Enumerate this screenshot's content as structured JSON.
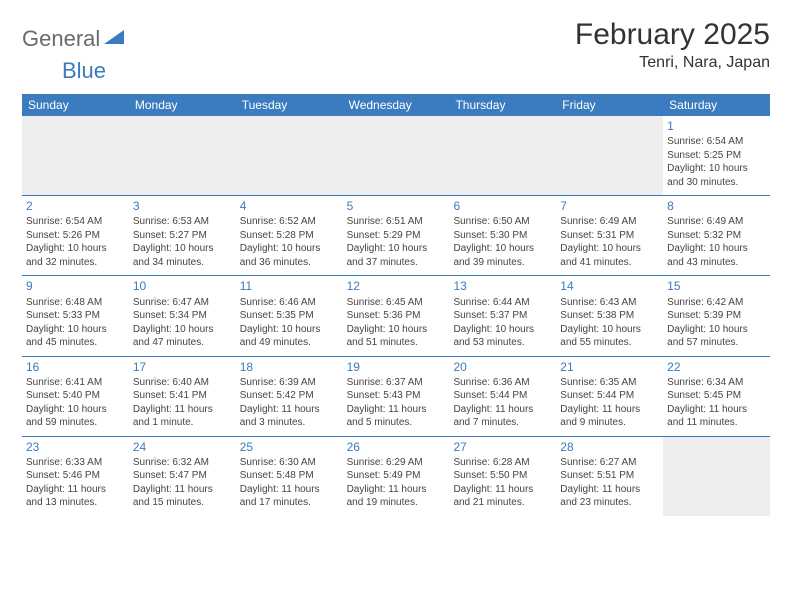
{
  "logo": {
    "word1": "General",
    "word2": "Blue"
  },
  "colors": {
    "accent": "#3b7bbf",
    "text": "#333333",
    "muted_bg": "#eeeeee",
    "header_text": "#ffffff"
  },
  "title": "February 2025",
  "location": "Tenri, Nara, Japan",
  "day_names": [
    "Sunday",
    "Monday",
    "Tuesday",
    "Wednesday",
    "Thursday",
    "Friday",
    "Saturday"
  ],
  "weeks": [
    [
      null,
      null,
      null,
      null,
      null,
      null,
      {
        "n": "1",
        "sunrise": "Sunrise: 6:54 AM",
        "sunset": "Sunset: 5:25 PM",
        "d1": "Daylight: 10 hours",
        "d2": "and 30 minutes."
      }
    ],
    [
      {
        "n": "2",
        "sunrise": "Sunrise: 6:54 AM",
        "sunset": "Sunset: 5:26 PM",
        "d1": "Daylight: 10 hours",
        "d2": "and 32 minutes."
      },
      {
        "n": "3",
        "sunrise": "Sunrise: 6:53 AM",
        "sunset": "Sunset: 5:27 PM",
        "d1": "Daylight: 10 hours",
        "d2": "and 34 minutes."
      },
      {
        "n": "4",
        "sunrise": "Sunrise: 6:52 AM",
        "sunset": "Sunset: 5:28 PM",
        "d1": "Daylight: 10 hours",
        "d2": "and 36 minutes."
      },
      {
        "n": "5",
        "sunrise": "Sunrise: 6:51 AM",
        "sunset": "Sunset: 5:29 PM",
        "d1": "Daylight: 10 hours",
        "d2": "and 37 minutes."
      },
      {
        "n": "6",
        "sunrise": "Sunrise: 6:50 AM",
        "sunset": "Sunset: 5:30 PM",
        "d1": "Daylight: 10 hours",
        "d2": "and 39 minutes."
      },
      {
        "n": "7",
        "sunrise": "Sunrise: 6:49 AM",
        "sunset": "Sunset: 5:31 PM",
        "d1": "Daylight: 10 hours",
        "d2": "and 41 minutes."
      },
      {
        "n": "8",
        "sunrise": "Sunrise: 6:49 AM",
        "sunset": "Sunset: 5:32 PM",
        "d1": "Daylight: 10 hours",
        "d2": "and 43 minutes."
      }
    ],
    [
      {
        "n": "9",
        "sunrise": "Sunrise: 6:48 AM",
        "sunset": "Sunset: 5:33 PM",
        "d1": "Daylight: 10 hours",
        "d2": "and 45 minutes."
      },
      {
        "n": "10",
        "sunrise": "Sunrise: 6:47 AM",
        "sunset": "Sunset: 5:34 PM",
        "d1": "Daylight: 10 hours",
        "d2": "and 47 minutes."
      },
      {
        "n": "11",
        "sunrise": "Sunrise: 6:46 AM",
        "sunset": "Sunset: 5:35 PM",
        "d1": "Daylight: 10 hours",
        "d2": "and 49 minutes."
      },
      {
        "n": "12",
        "sunrise": "Sunrise: 6:45 AM",
        "sunset": "Sunset: 5:36 PM",
        "d1": "Daylight: 10 hours",
        "d2": "and 51 minutes."
      },
      {
        "n": "13",
        "sunrise": "Sunrise: 6:44 AM",
        "sunset": "Sunset: 5:37 PM",
        "d1": "Daylight: 10 hours",
        "d2": "and 53 minutes."
      },
      {
        "n": "14",
        "sunrise": "Sunrise: 6:43 AM",
        "sunset": "Sunset: 5:38 PM",
        "d1": "Daylight: 10 hours",
        "d2": "and 55 minutes."
      },
      {
        "n": "15",
        "sunrise": "Sunrise: 6:42 AM",
        "sunset": "Sunset: 5:39 PM",
        "d1": "Daylight: 10 hours",
        "d2": "and 57 minutes."
      }
    ],
    [
      {
        "n": "16",
        "sunrise": "Sunrise: 6:41 AM",
        "sunset": "Sunset: 5:40 PM",
        "d1": "Daylight: 10 hours",
        "d2": "and 59 minutes."
      },
      {
        "n": "17",
        "sunrise": "Sunrise: 6:40 AM",
        "sunset": "Sunset: 5:41 PM",
        "d1": "Daylight: 11 hours",
        "d2": "and 1 minute."
      },
      {
        "n": "18",
        "sunrise": "Sunrise: 6:39 AM",
        "sunset": "Sunset: 5:42 PM",
        "d1": "Daylight: 11 hours",
        "d2": "and 3 minutes."
      },
      {
        "n": "19",
        "sunrise": "Sunrise: 6:37 AM",
        "sunset": "Sunset: 5:43 PM",
        "d1": "Daylight: 11 hours",
        "d2": "and 5 minutes."
      },
      {
        "n": "20",
        "sunrise": "Sunrise: 6:36 AM",
        "sunset": "Sunset: 5:44 PM",
        "d1": "Daylight: 11 hours",
        "d2": "and 7 minutes."
      },
      {
        "n": "21",
        "sunrise": "Sunrise: 6:35 AM",
        "sunset": "Sunset: 5:44 PM",
        "d1": "Daylight: 11 hours",
        "d2": "and 9 minutes."
      },
      {
        "n": "22",
        "sunrise": "Sunrise: 6:34 AM",
        "sunset": "Sunset: 5:45 PM",
        "d1": "Daylight: 11 hours",
        "d2": "and 11 minutes."
      }
    ],
    [
      {
        "n": "23",
        "sunrise": "Sunrise: 6:33 AM",
        "sunset": "Sunset: 5:46 PM",
        "d1": "Daylight: 11 hours",
        "d2": "and 13 minutes."
      },
      {
        "n": "24",
        "sunrise": "Sunrise: 6:32 AM",
        "sunset": "Sunset: 5:47 PM",
        "d1": "Daylight: 11 hours",
        "d2": "and 15 minutes."
      },
      {
        "n": "25",
        "sunrise": "Sunrise: 6:30 AM",
        "sunset": "Sunset: 5:48 PM",
        "d1": "Daylight: 11 hours",
        "d2": "and 17 minutes."
      },
      {
        "n": "26",
        "sunrise": "Sunrise: 6:29 AM",
        "sunset": "Sunset: 5:49 PM",
        "d1": "Daylight: 11 hours",
        "d2": "and 19 minutes."
      },
      {
        "n": "27",
        "sunrise": "Sunrise: 6:28 AM",
        "sunset": "Sunset: 5:50 PM",
        "d1": "Daylight: 11 hours",
        "d2": "and 21 minutes."
      },
      {
        "n": "28",
        "sunrise": "Sunrise: 6:27 AM",
        "sunset": "Sunset: 5:51 PM",
        "d1": "Daylight: 11 hours",
        "d2": "and 23 minutes."
      },
      null
    ]
  ]
}
